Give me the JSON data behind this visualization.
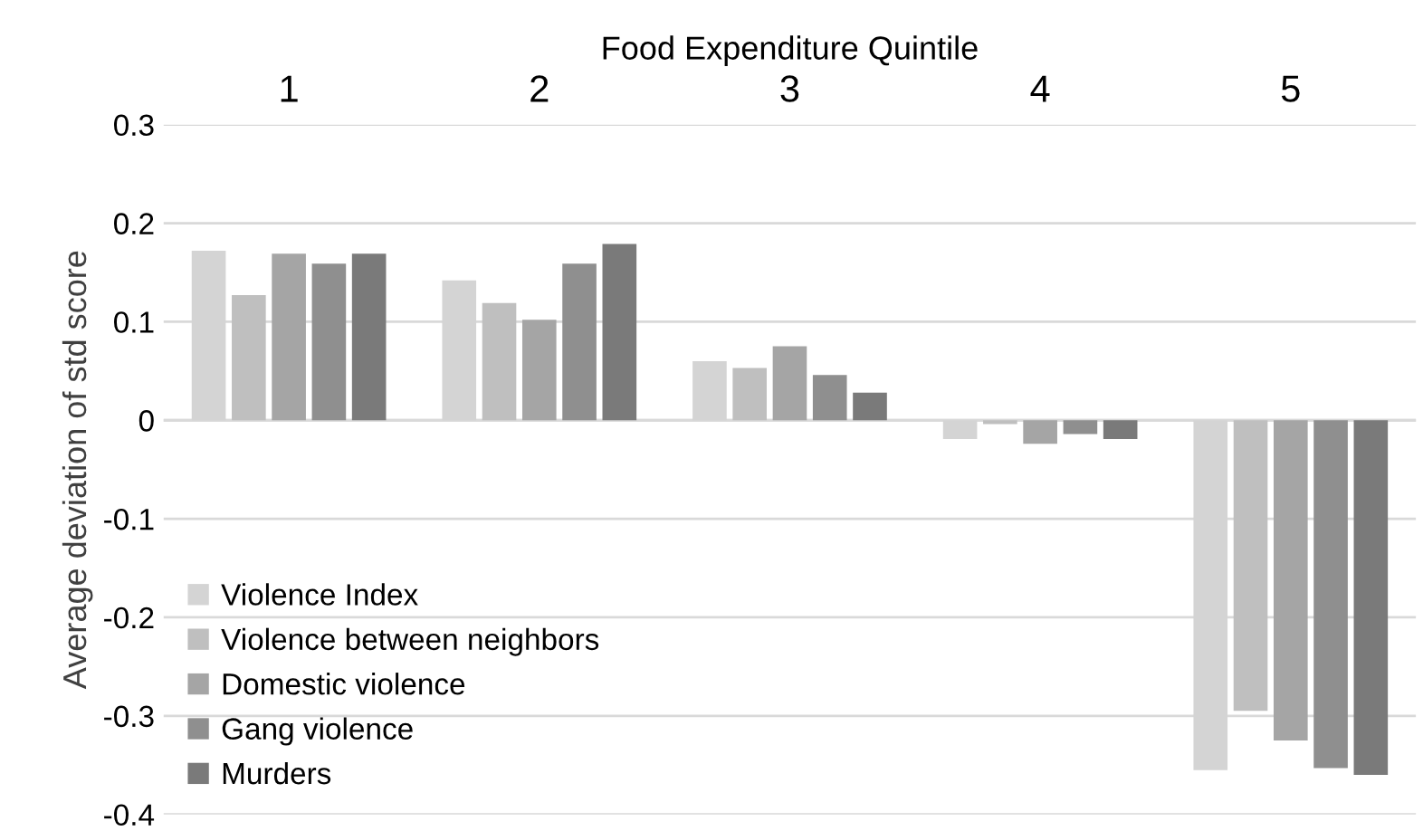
{
  "chart_data": {
    "type": "bar",
    "xlabel": "Food Expenditure Quintile",
    "ylabel": "Average deviation of std score",
    "categories": [
      "1",
      "2",
      "3",
      "4",
      "5"
    ],
    "series": [
      {
        "name": "Violence Index",
        "color": "#d4d4d4",
        "values": [
          0.172,
          0.142,
          0.06,
          -0.019,
          -0.355
        ]
      },
      {
        "name": "Violence between neighbors",
        "color": "#bfbfbf",
        "values": [
          0.127,
          0.119,
          0.053,
          -0.004,
          -0.295
        ]
      },
      {
        "name": "Domestic violence",
        "color": "#a5a5a5",
        "values": [
          0.169,
          0.102,
          0.075,
          -0.024,
          -0.325
        ]
      },
      {
        "name": "Gang violence",
        "color": "#8f8f8f",
        "values": [
          0.159,
          0.159,
          0.046,
          -0.014,
          -0.353
        ]
      },
      {
        "name": "Murders",
        "color": "#7a7a7a",
        "values": [
          0.169,
          0.179,
          0.028,
          -0.019,
          -0.36
        ]
      }
    ],
    "ylim": [
      -0.4,
      0.3
    ],
    "yticks": [
      -0.4,
      -0.3,
      -0.2,
      -0.1,
      0,
      0.1,
      0.2,
      0.3
    ],
    "grid": "y",
    "legend": "bottom left"
  }
}
